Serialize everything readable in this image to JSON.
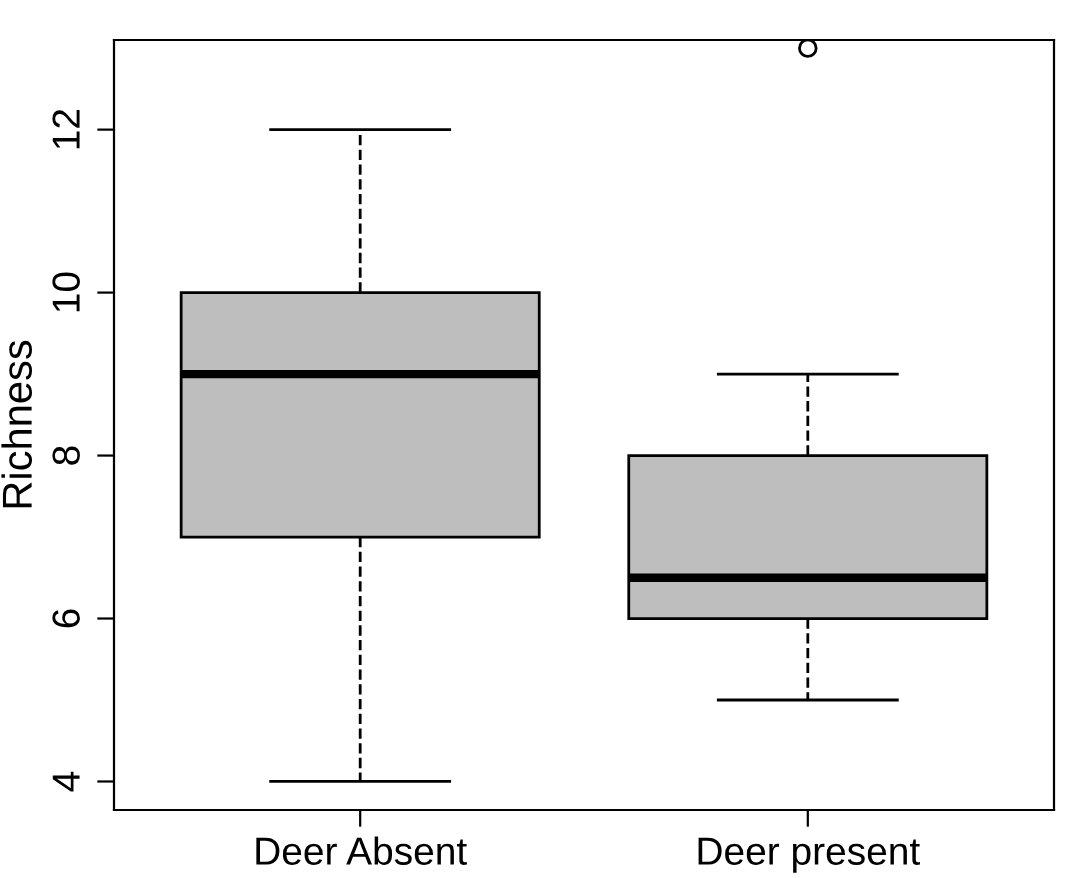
{
  "chart_data": {
    "type": "box",
    "ylabel": "Richness",
    "categories": [
      "Deer Absent",
      "Deer present"
    ],
    "series": [
      {
        "color": "#bebebe",
        "boxes": [
          {
            "low": 4,
            "q1": 7,
            "median": 9,
            "q3": 10,
            "high": 12
          },
          {
            "low": 5,
            "q1": 6,
            "median": 6.5,
            "q3": 8,
            "high": 9,
            "outliers": [
              13
            ]
          }
        ]
      }
    ],
    "ylim": [
      3.65,
      13.1
    ],
    "yticks": [
      4,
      6,
      8,
      10,
      12
    ],
    "grid": false,
    "line_style": "dashed"
  }
}
